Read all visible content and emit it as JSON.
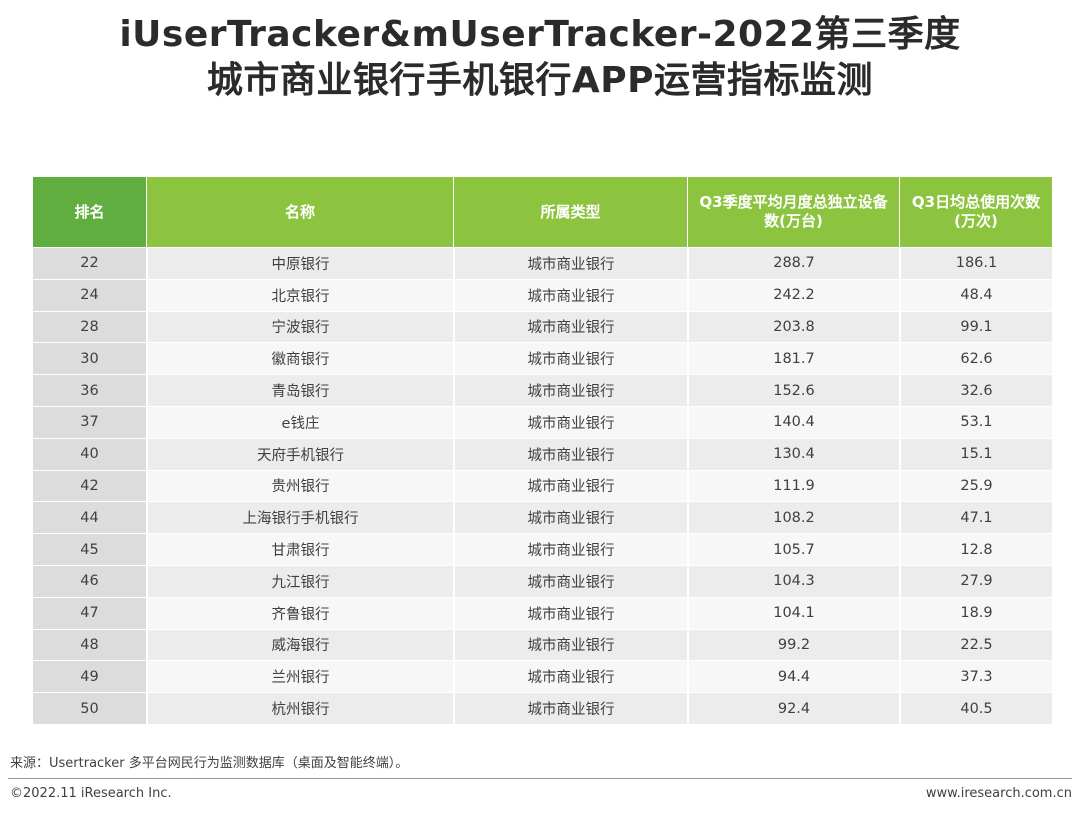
{
  "title": {
    "line1": "iUserTracker&mUserTracker-2022第三季度",
    "line2": "城市商业银行手机银行APP运营指标监测"
  },
  "table": {
    "headers": {
      "rank": "排名",
      "name": "名称",
      "type": "所属类型",
      "devices_1": "Q3季度平均月度总独立设备",
      "devices_2": "数(万台)",
      "usage_1": "Q3日均总使用次数",
      "usage_2": "(万次)"
    },
    "rows": [
      {
        "rank": "22",
        "name": "中原银行",
        "type": "城市商业银行",
        "devices": "288.7",
        "usage": "186.1"
      },
      {
        "rank": "24",
        "name": "北京银行",
        "type": "城市商业银行",
        "devices": "242.2",
        "usage": "48.4"
      },
      {
        "rank": "28",
        "name": "宁波银行",
        "type": "城市商业银行",
        "devices": "203.8",
        "usage": "99.1"
      },
      {
        "rank": "30",
        "name": "徽商银行",
        "type": "城市商业银行",
        "devices": "181.7",
        "usage": "62.6"
      },
      {
        "rank": "36",
        "name": "青岛银行",
        "type": "城市商业银行",
        "devices": "152.6",
        "usage": "32.6"
      },
      {
        "rank": "37",
        "name": "e钱庄",
        "type": "城市商业银行",
        "devices": "140.4",
        "usage": "53.1"
      },
      {
        "rank": "40",
        "name": "天府手机银行",
        "type": "城市商业银行",
        "devices": "130.4",
        "usage": "15.1"
      },
      {
        "rank": "42",
        "name": "贵州银行",
        "type": "城市商业银行",
        "devices": "111.9",
        "usage": "25.9"
      },
      {
        "rank": "44",
        "name": "上海银行手机银行",
        "type": "城市商业银行",
        "devices": "108.2",
        "usage": "47.1"
      },
      {
        "rank": "45",
        "name": "甘肃银行",
        "type": "城市商业银行",
        "devices": "105.7",
        "usage": "12.8"
      },
      {
        "rank": "46",
        "name": "九江银行",
        "type": "城市商业银行",
        "devices": "104.3",
        "usage": "27.9"
      },
      {
        "rank": "47",
        "name": "齐鲁银行",
        "type": "城市商业银行",
        "devices": "104.1",
        "usage": "18.9"
      },
      {
        "rank": "48",
        "name": "威海银行",
        "type": "城市商业银行",
        "devices": "99.2",
        "usage": "22.5"
      },
      {
        "rank": "49",
        "name": "兰州银行",
        "type": "城市商业银行",
        "devices": "94.4",
        "usage": "37.3"
      },
      {
        "rank": "50",
        "name": "杭州银行",
        "type": "城市商业银行",
        "devices": "92.4",
        "usage": "40.5"
      }
    ]
  },
  "footer": {
    "source": "来源：Usertracker 多平台网民行为监测数据库（桌面及智能终端）。",
    "copyright": "©2022.11 iResearch Inc.",
    "website": "www.iresearch.com.cn"
  },
  "colors": {
    "header_green": "#8cc43f",
    "header_dark_green": "#60ad40"
  }
}
